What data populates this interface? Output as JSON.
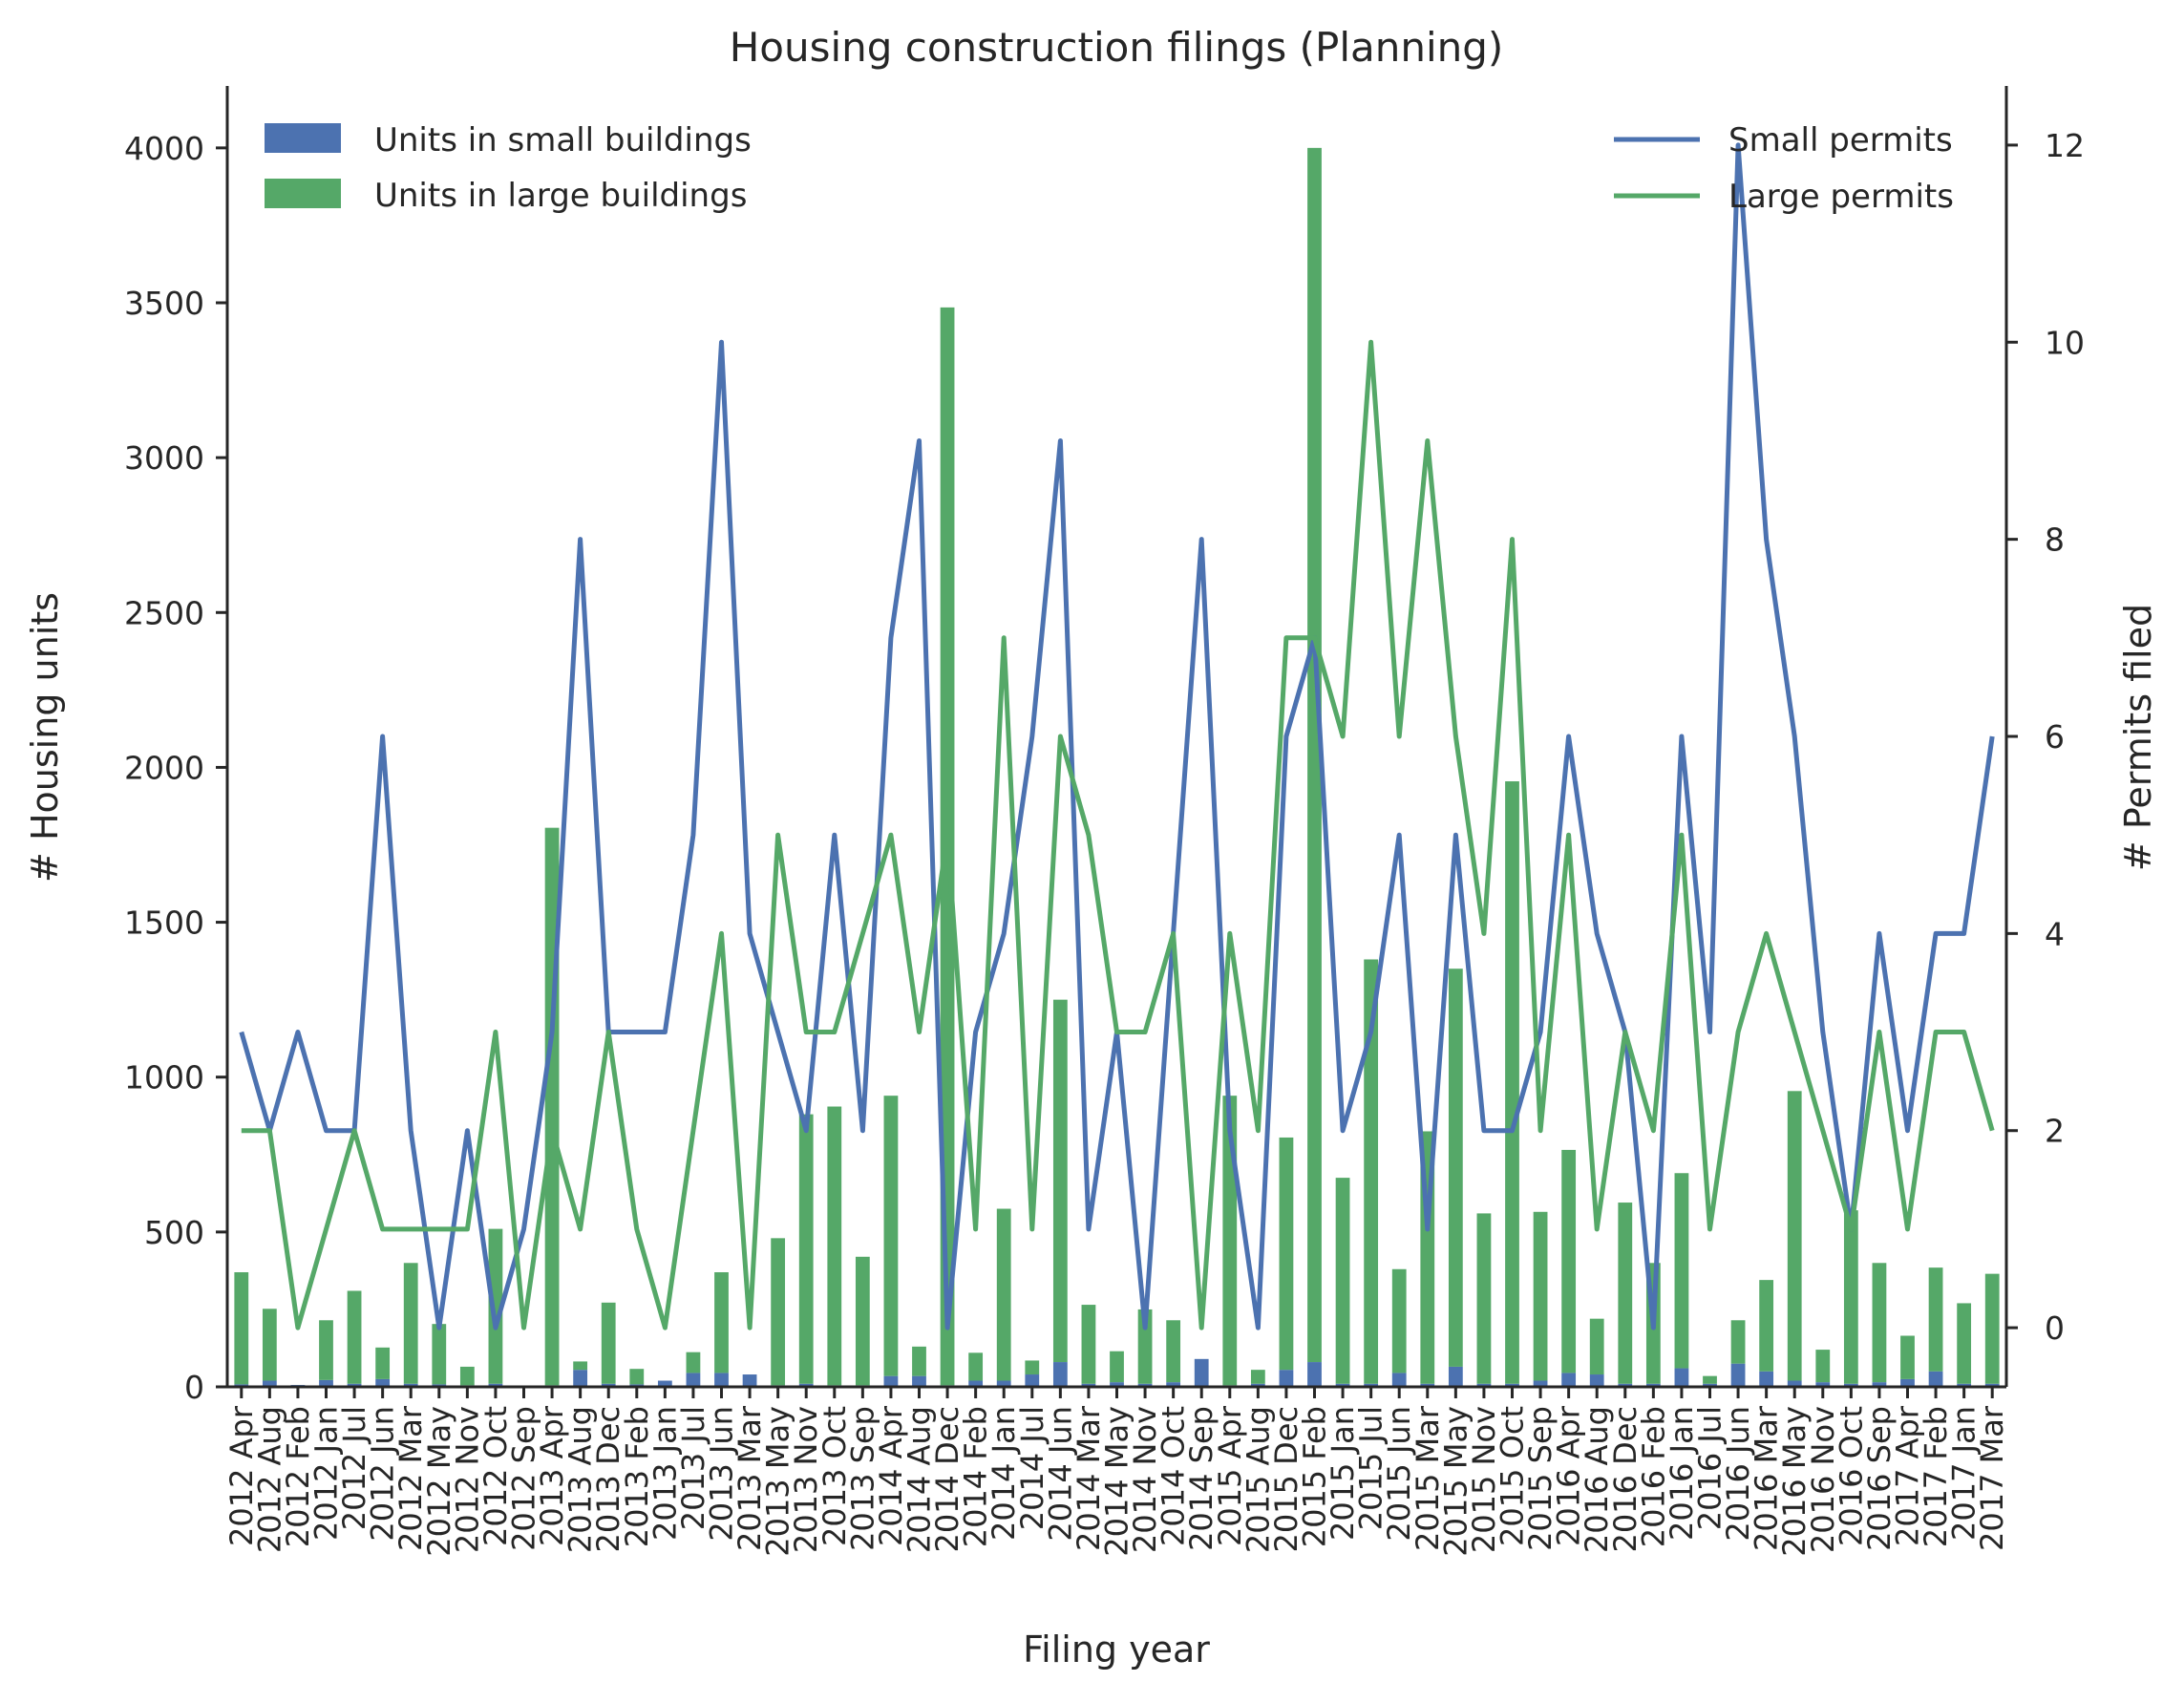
{
  "chart_data": {
    "type": "bar",
    "title": "Housing construction filings (Planning)",
    "xlabel": "Filing year",
    "ylabel": "# Housing units",
    "ylabel_right": "# Permits filed",
    "ylim": [
      0,
      4200
    ],
    "ylim_right": [
      -0.6,
      12.6
    ],
    "yticks": [
      0,
      500,
      1000,
      1500,
      2000,
      2500,
      3000,
      3500,
      4000
    ],
    "yticks_right": [
      0,
      2,
      4,
      6,
      8,
      10,
      12
    ],
    "grid": false,
    "legend_left_placement": "top-left",
    "legend_right_placement": "top-right",
    "categories": [
      "2012 Apr",
      "2012 Aug",
      "2012 Feb",
      "2012 Jan",
      "2012 Jul",
      "2012 Jun",
      "2012 Mar",
      "2012 May",
      "2012 Nov",
      "2012 Oct",
      "2012 Sep",
      "2013 Apr",
      "2013 Aug",
      "2013 Dec",
      "2013 Feb",
      "2013 Jan",
      "2013 Jul",
      "2013 Jun",
      "2013 Mar",
      "2013 May",
      "2013 Nov",
      "2013 Oct",
      "2013 Sep",
      "2014 Apr",
      "2014 Aug",
      "2014 Dec",
      "2014 Feb",
      "2014 Jan",
      "2014 Jul",
      "2014 Jun",
      "2014 Mar",
      "2014 May",
      "2014 Nov",
      "2014 Oct",
      "2014 Sep",
      "2015 Apr",
      "2015 Aug",
      "2015 Dec",
      "2015 Feb",
      "2015 Jan",
      "2015 Jul",
      "2015 Jun",
      "2015 Mar",
      "2015 May",
      "2015 Nov",
      "2015 Oct",
      "2015 Sep",
      "2016 Apr",
      "2016 Aug",
      "2016 Dec",
      "2016 Feb",
      "2016 Jan",
      "2016 Jul",
      "2016 Jun",
      "2016 Mar",
      "2016 May",
      "2016 Nov",
      "2016 Oct",
      "2016 Sep",
      "2017 Apr",
      "2017 Feb",
      "2017 Jan",
      "2017 Mar"
    ],
    "series": [
      {
        "name": "Units in small buildings",
        "kind": "bar-stacked",
        "axis": "left",
        "color": "#4c72b0",
        "values": [
          8,
          20,
          6,
          22,
          10,
          25,
          10,
          8,
          5,
          10,
          0,
          5,
          55,
          10,
          8,
          20,
          45,
          45,
          40,
          5,
          10,
          5,
          5,
          35,
          35,
          5,
          20,
          20,
          40,
          80,
          10,
          15,
          10,
          15,
          90,
          5,
          10,
          55,
          80,
          10,
          10,
          45,
          10,
          65,
          10,
          10,
          20,
          45,
          40,
          10,
          10,
          60,
          10,
          75,
          50,
          20,
          15,
          10,
          15,
          25,
          50,
          10,
          10
        ]
      },
      {
        "name": "Units in large buildings",
        "kind": "bar-stacked",
        "axis": "left",
        "color": "#55a868",
        "values": [
          362,
          232,
          0,
          193,
          300,
          102,
          390,
          195,
          60,
          500,
          0,
          1800,
          27,
          262,
          50,
          0,
          67,
          325,
          0,
          475,
          870,
          900,
          415,
          905,
          95,
          3480,
          90,
          555,
          45,
          1170,
          255,
          100,
          240,
          200,
          0,
          935,
          45,
          750,
          3920,
          665,
          1370,
          335,
          815,
          1285,
          550,
          1945,
          545,
          720,
          180,
          585,
          390,
          630,
          25,
          140,
          295,
          935,
          105,
          560,
          385,
          140,
          335,
          260,
          355
        ]
      },
      {
        "name": "Small permits",
        "kind": "line",
        "axis": "right",
        "color": "#4c72b0",
        "values": [
          3,
          2,
          3,
          2,
          2,
          6,
          2,
          0,
          2,
          0,
          1,
          3,
          8,
          3,
          3,
          3,
          5,
          10,
          4,
          3,
          2,
          5,
          2,
          7,
          9,
          0,
          3,
          4,
          6,
          9,
          1,
          3,
          0,
          4,
          8,
          2,
          0,
          6,
          7,
          2,
          3,
          5,
          1,
          5,
          2,
          2,
          3,
          6,
          4,
          3,
          0,
          6,
          3,
          12,
          8,
          6,
          3,
          1,
          4,
          2,
          4,
          4,
          6
        ]
      },
      {
        "name": "Large permits",
        "kind": "line",
        "axis": "right",
        "color": "#55a868",
        "values": [
          2,
          2,
          0,
          1,
          2,
          1,
          1,
          1,
          1,
          3,
          0,
          2,
          1,
          3,
          1,
          0,
          2,
          4,
          0,
          5,
          3,
          3,
          4,
          5,
          3,
          5,
          1,
          7,
          1,
          6,
          5,
          3,
          3,
          4,
          0,
          4,
          2,
          7,
          7,
          6,
          10,
          6,
          9,
          6,
          4,
          8,
          2,
          5,
          1,
          3,
          2,
          5,
          1,
          3,
          4,
          3,
          2,
          1,
          3,
          1,
          3,
          3,
          2
        ]
      }
    ]
  }
}
